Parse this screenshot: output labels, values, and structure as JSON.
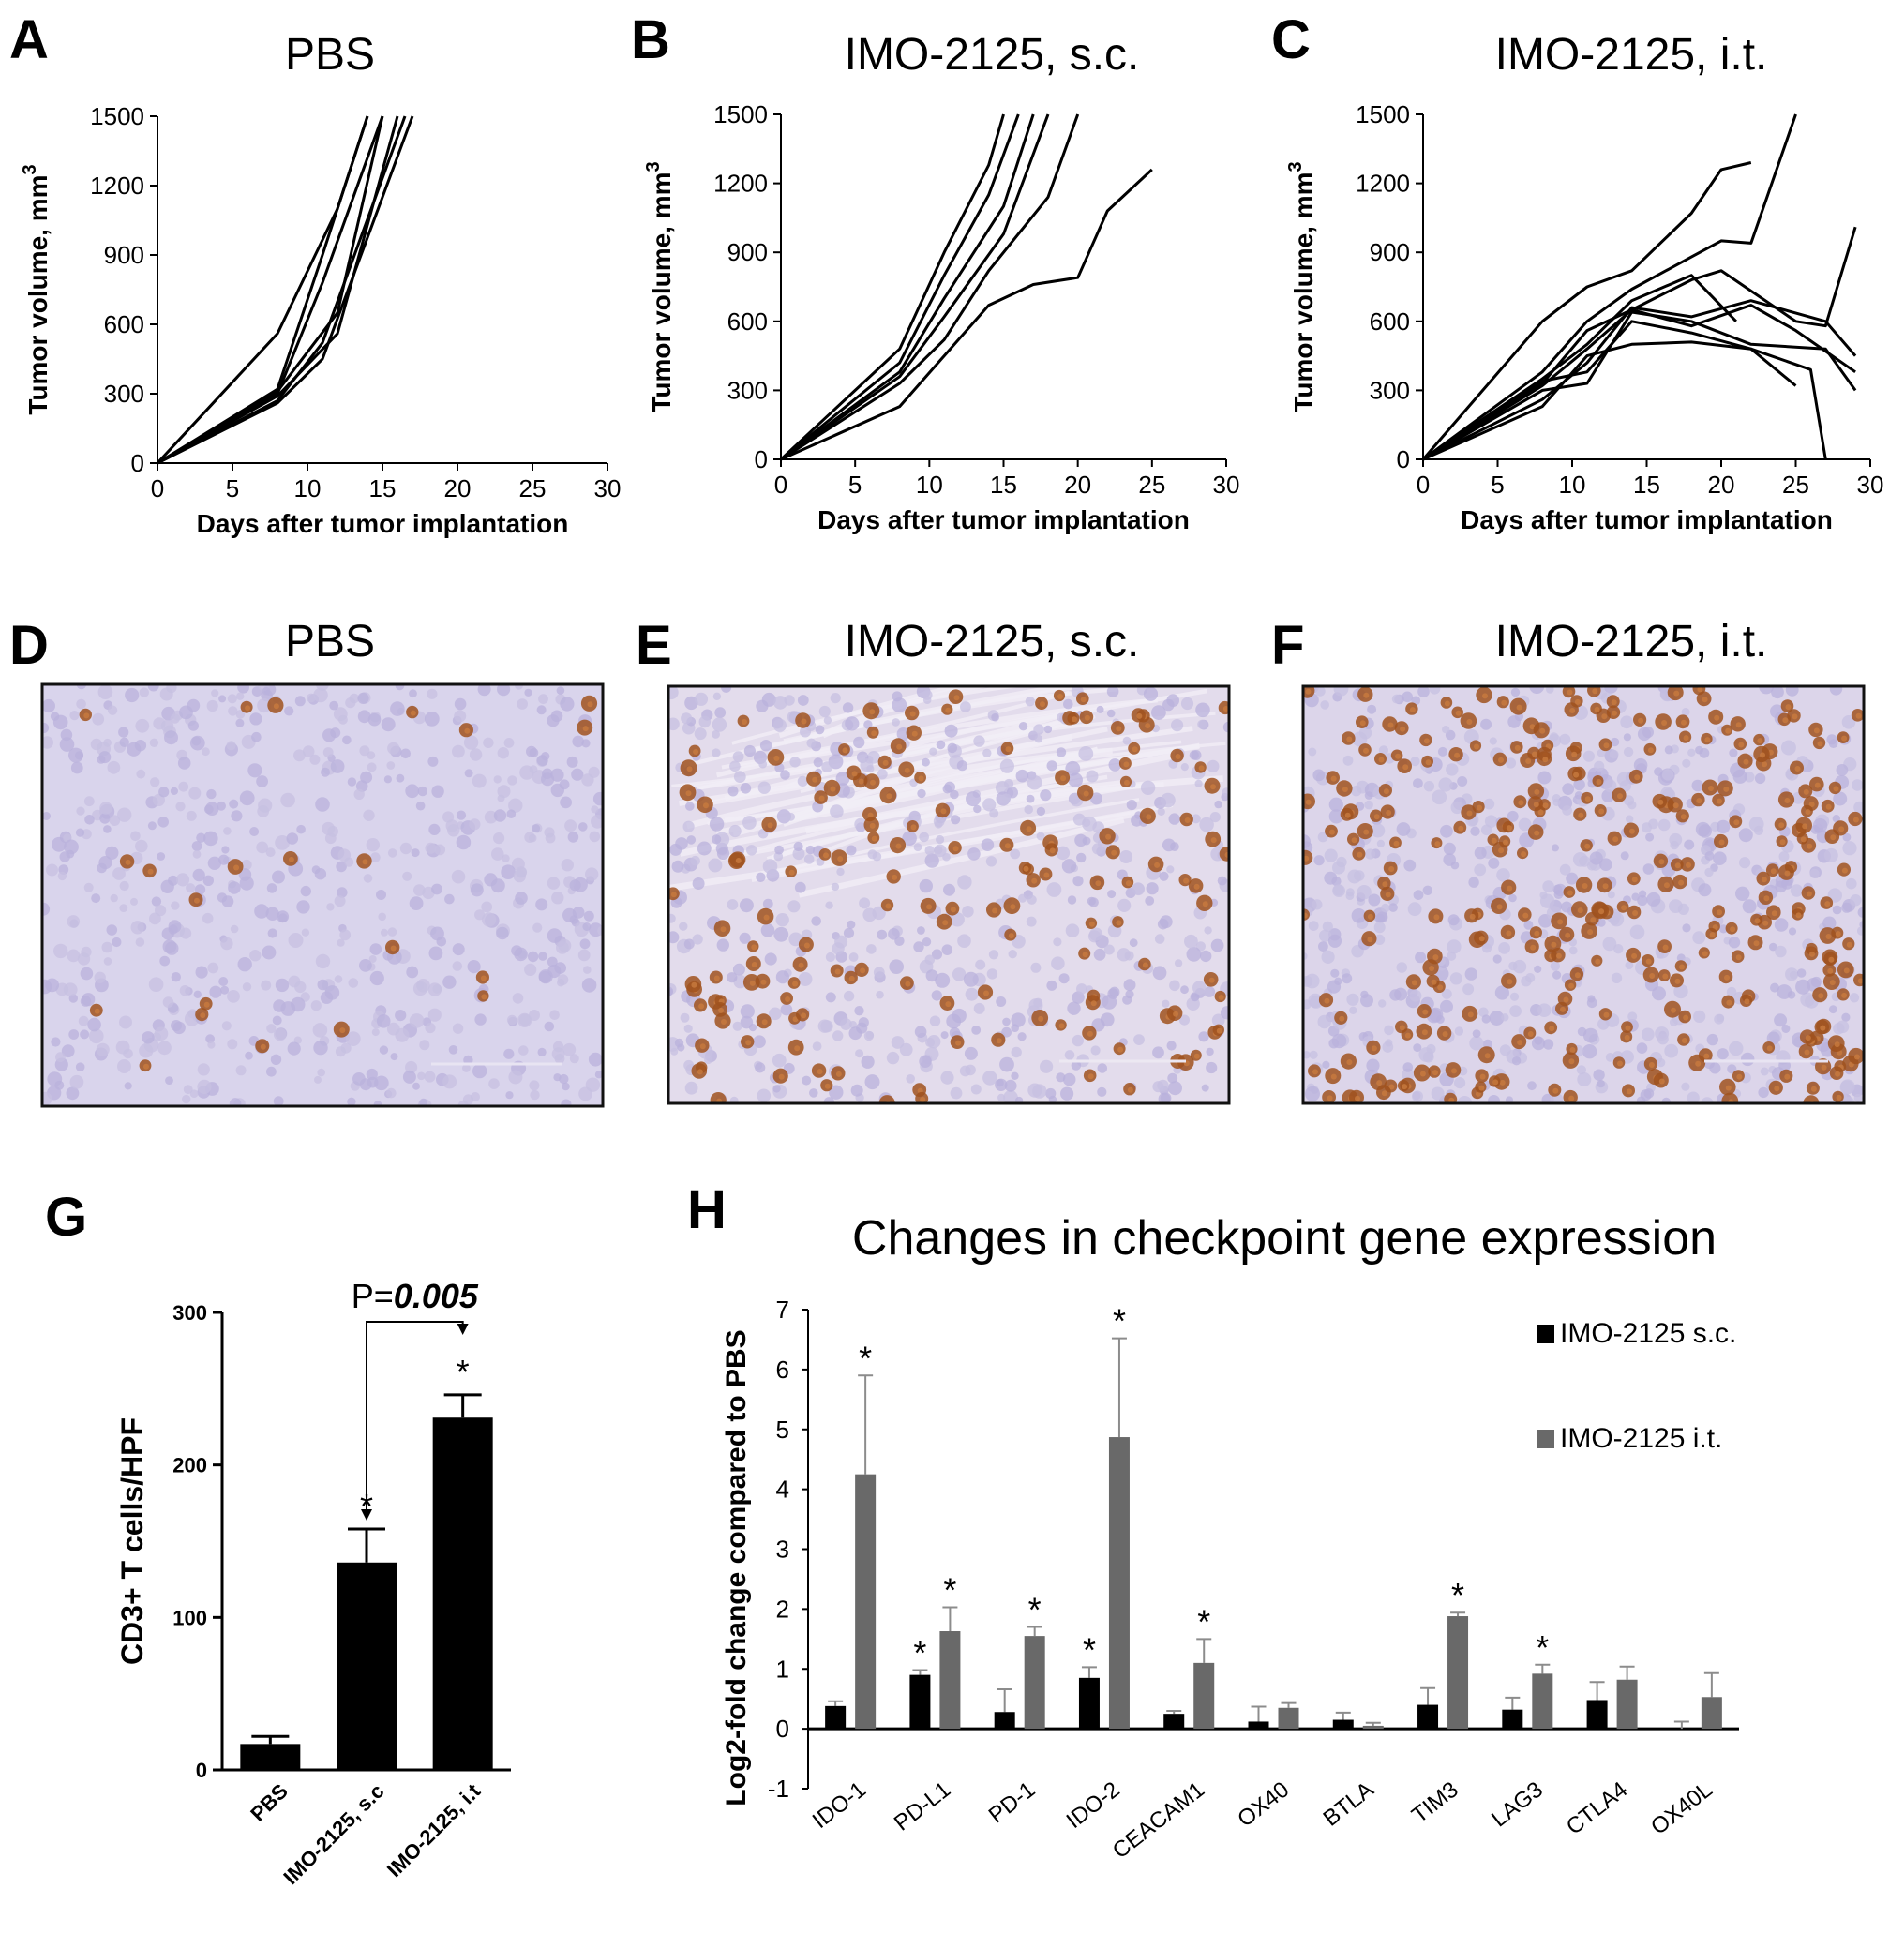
{
  "panels": {
    "A": {
      "letter": "A",
      "title": "PBS"
    },
    "B": {
      "letter": "B",
      "title": "IMO-2125, s.c."
    },
    "C": {
      "letter": "C",
      "title": "IMO-2125, i.t."
    },
    "D": {
      "letter": "D",
      "title": "PBS"
    },
    "E": {
      "letter": "E",
      "title": "IMO-2125, s.c."
    },
    "F": {
      "letter": "F",
      "title": "IMO-2125, i.t."
    },
    "G": {
      "letter": "G"
    },
    "H": {
      "letter": "H",
      "title": "Changes in checkpoint gene expression"
    }
  },
  "micrographs": {
    "D": {
      "stain_color": "#a0521e",
      "background": "#d9d4ec",
      "positive_density": "low"
    },
    "E": {
      "stain_color": "#a0521e",
      "background": "#e3dcec",
      "positive_density": "medium"
    },
    "F": {
      "stain_color": "#a0521e",
      "background": "#dcd5ea",
      "positive_density": "high"
    }
  },
  "chart_data": [
    {
      "id": "A",
      "type": "line",
      "title": "PBS",
      "xlabel": "Days after tumor implantation",
      "ylabel": "Tumor volume, mm",
      "ylabel_superscript": "3",
      "xlim": [
        0,
        30
      ],
      "ylim": [
        0,
        1500
      ],
      "xticks": [
        0,
        5,
        10,
        15,
        20,
        25,
        30
      ],
      "yticks": [
        0,
        300,
        600,
        900,
        1200,
        1500
      ],
      "series": [
        {
          "x": [
            0,
            8,
            12,
            14
          ],
          "y": [
            0,
            560,
            1100,
            1500
          ]
        },
        {
          "x": [
            0,
            8,
            11,
            14
          ],
          "y": [
            0,
            320,
            900,
            1500
          ]
        },
        {
          "x": [
            0,
            8,
            11,
            15
          ],
          "y": [
            0,
            300,
            780,
            1500
          ]
        },
        {
          "x": [
            0,
            8,
            12,
            15
          ],
          "y": [
            0,
            310,
            650,
            1500
          ]
        },
        {
          "x": [
            0,
            8,
            12,
            16
          ],
          "y": [
            0,
            290,
            560,
            1500
          ]
        },
        {
          "x": [
            0,
            8,
            11,
            16.5
          ],
          "y": [
            0,
            270,
            520,
            1500
          ]
        },
        {
          "x": [
            0,
            8,
            11,
            17
          ],
          "y": [
            0,
            260,
            450,
            1500
          ]
        }
      ]
    },
    {
      "id": "B",
      "type": "line",
      "title": "IMO-2125, s.c.",
      "xlabel": "Days after tumor implantation",
      "ylabel": "Tumor volume, mm",
      "ylabel_superscript": "3",
      "xlim": [
        0,
        30
      ],
      "ylim": [
        0,
        1500
      ],
      "xticks": [
        0,
        5,
        10,
        15,
        20,
        25,
        30
      ],
      "yticks": [
        0,
        300,
        600,
        900,
        1200,
        1500
      ],
      "series": [
        {
          "x": [
            0,
            8,
            11,
            14,
            15
          ],
          "y": [
            0,
            480,
            900,
            1280,
            1500
          ]
        },
        {
          "x": [
            0,
            8,
            11,
            14,
            16
          ],
          "y": [
            0,
            420,
            800,
            1150,
            1500
          ]
        },
        {
          "x": [
            0,
            8,
            11,
            15,
            17
          ],
          "y": [
            0,
            380,
            700,
            1100,
            1500
          ]
        },
        {
          "x": [
            0,
            8,
            11,
            15,
            18
          ],
          "y": [
            0,
            360,
            620,
            980,
            1500
          ]
        },
        {
          "x": [
            0,
            8,
            11,
            14,
            18,
            20
          ],
          "y": [
            0,
            330,
            520,
            820,
            1140,
            1500
          ]
        },
        {
          "x": [
            0,
            8,
            11,
            14,
            17,
            20,
            22,
            25
          ],
          "y": [
            0,
            230,
            450,
            670,
            760,
            790,
            1080,
            1260
          ]
        }
      ]
    },
    {
      "id": "C",
      "type": "line",
      "title": "IMO-2125, i.t.",
      "xlabel": "Days after tumor implantation",
      "ylabel": "Tumor volume, mm",
      "ylabel_superscript": "3",
      "xlim": [
        0,
        30
      ],
      "ylim": [
        0,
        1500
      ],
      "xticks": [
        0,
        5,
        10,
        15,
        20,
        25,
        30
      ],
      "yticks": [
        0,
        300,
        600,
        900,
        1200,
        1500
      ],
      "series": [
        {
          "x": [
            0,
            8,
            11,
            14,
            18,
            20,
            22
          ],
          "y": [
            0,
            600,
            750,
            820,
            1070,
            1260,
            1290
          ]
        },
        {
          "x": [
            0,
            8,
            11,
            14,
            18,
            20,
            22,
            25
          ],
          "y": [
            0,
            380,
            600,
            740,
            880,
            950,
            940,
            1500
          ]
        },
        {
          "x": [
            0,
            8,
            11,
            14,
            18,
            21
          ],
          "y": [
            0,
            350,
            500,
            690,
            800,
            600
          ]
        },
        {
          "x": [
            0,
            8,
            11,
            14,
            18,
            20,
            25,
            27,
            29
          ],
          "y": [
            0,
            320,
            480,
            650,
            780,
            820,
            600,
            580,
            1010
          ]
        },
        {
          "x": [
            0,
            8,
            11,
            14,
            18,
            22,
            27,
            29
          ],
          "y": [
            0,
            260,
            420,
            660,
            620,
            690,
            600,
            450
          ]
        },
        {
          "x": [
            0,
            8,
            11,
            14,
            18,
            22,
            27,
            29
          ],
          "y": [
            0,
            300,
            330,
            640,
            600,
            500,
            480,
            300
          ]
        },
        {
          "x": [
            0,
            8,
            11,
            14,
            18,
            22,
            26,
            27
          ],
          "y": [
            0,
            340,
            380,
            600,
            550,
            480,
            390,
            0
          ]
        },
        {
          "x": [
            0,
            8,
            11,
            14,
            18,
            22,
            25,
            29
          ],
          "y": [
            0,
            330,
            560,
            650,
            580,
            670,
            560,
            380
          ]
        },
        {
          "x": [
            0,
            8,
            11,
            14,
            18,
            22,
            25
          ],
          "y": [
            0,
            230,
            450,
            500,
            510,
            480,
            320
          ]
        }
      ]
    },
    {
      "id": "G",
      "type": "bar",
      "ylabel": "CD3+ T cells/HPF",
      "ylim": [
        0,
        300
      ],
      "yticks": [
        0,
        100,
        200,
        300
      ],
      "categories": [
        "PBS",
        "IMO-2125, s.c",
        "IMO-2125, i.t"
      ],
      "values": [
        17,
        136,
        231
      ],
      "errors": [
        5,
        22,
        15
      ],
      "significance": [
        "",
        "*",
        "*"
      ],
      "comparison": {
        "label_prefix": "P=",
        "label_value": "0.005",
        "between": [
          1,
          2
        ]
      }
    },
    {
      "id": "H",
      "type": "bar",
      "title": "Changes in checkpoint gene expression",
      "ylabel": "Log2-fold change compared to PBS",
      "ylim": [
        -1,
        7
      ],
      "yticks": [
        -1,
        0,
        1,
        2,
        3,
        4,
        5,
        6,
        7
      ],
      "categories": [
        "IDO-1",
        "PD-L1",
        "PD-1",
        "IDO-2",
        "CEACAM1",
        "OX40",
        "BTLA",
        "TIM3",
        "LAG3",
        "CTLA4",
        "OX40L"
      ],
      "series": [
        {
          "name": "IMO-2125 s.c.",
          "color": "#000000",
          "values": [
            0.38,
            0.9,
            0.28,
            0.85,
            0.25,
            0.12,
            0.15,
            0.4,
            0.32,
            0.48,
            0.0
          ],
          "errors": [
            0.08,
            0.08,
            0.38,
            0.18,
            0.05,
            0.25,
            0.12,
            0.28,
            0.2,
            0.3,
            0.12
          ],
          "significance": [
            "",
            "*",
            "",
            "*",
            "",
            "",
            "",
            "",
            "",
            "",
            ""
          ]
        },
        {
          "name": "IMO-2125 i.t.",
          "color": "#696969",
          "values": [
            4.25,
            1.63,
            1.55,
            4.87,
            1.1,
            0.35,
            0.05,
            1.88,
            0.92,
            0.82,
            0.53
          ],
          "errors": [
            1.65,
            0.4,
            0.15,
            1.65,
            0.4,
            0.08,
            0.05,
            0.06,
            0.15,
            0.22,
            0.4
          ],
          "significance": [
            "*",
            "*",
            "*",
            "*",
            "*",
            "",
            "",
            "*",
            "*",
            "",
            ""
          ]
        }
      ],
      "legend_position": "top-right"
    }
  ]
}
